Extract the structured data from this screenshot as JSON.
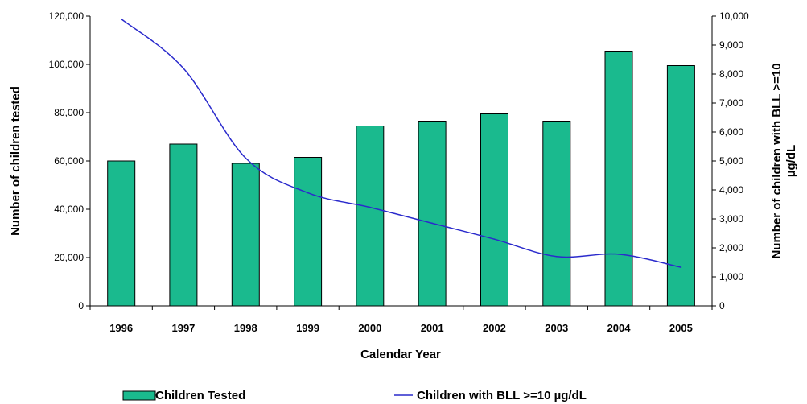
{
  "chart_data": {
    "type": "bar",
    "categories": [
      "1996",
      "1997",
      "1998",
      "1999",
      "2000",
      "2001",
      "2002",
      "2003",
      "2004",
      "2005"
    ],
    "series": [
      {
        "name": "Children Tested",
        "type": "bar",
        "axis": "left",
        "color": "#1aba8e",
        "values": [
          60000,
          67000,
          59000,
          61500,
          74500,
          76500,
          79500,
          76500,
          105500,
          99500
        ]
      },
      {
        "name": "Children with BLL >=10 µg/dL",
        "type": "line",
        "axis": "right",
        "color": "#2a2acc",
        "values": [
          9900,
          8200,
          5100,
          3900,
          3400,
          2850,
          2300,
          1700,
          1780,
          1330
        ]
      }
    ],
    "xlabel": "Calendar Year",
    "ylabel": "Number of children tested",
    "y2label_line1": "Number of children with BLL >=10",
    "y2label_line2": "µg/dL",
    "ylim": [
      0,
      120000
    ],
    "y2lim": [
      0,
      10000
    ],
    "yticks": [
      "0",
      "20,000",
      "40,000",
      "60,000",
      "80,000",
      "100,000",
      "120,000"
    ],
    "y2ticks": [
      "0",
      "1,000",
      "2,000",
      "3,000",
      "4,000",
      "5,000",
      "6,000",
      "7,000",
      "8,000",
      "9,000",
      "10,000"
    ],
    "legend_position": "bottom",
    "grid": false
  }
}
